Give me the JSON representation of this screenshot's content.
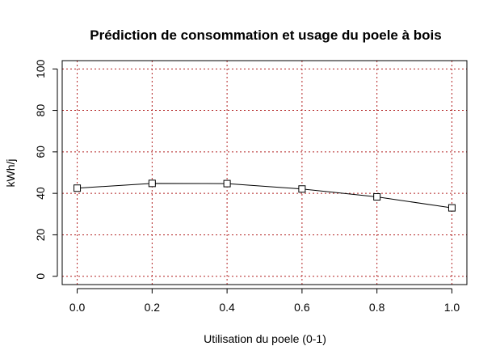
{
  "chart_data": {
    "type": "line",
    "title": "Prédiction de consommation et usage du poele à bois",
    "xlabel": "Utilisation du poele (0-1)",
    "ylabel": "kWh/j",
    "xlim": [
      -0.04,
      1.04
    ],
    "ylim": [
      -4,
      104
    ],
    "xticks": [
      0.0,
      0.2,
      0.4,
      0.6,
      0.8,
      1.0
    ],
    "xtick_labels": [
      "0.0",
      "0.2",
      "0.4",
      "0.6",
      "0.8",
      "1.0"
    ],
    "yticks": [
      0,
      20,
      40,
      60,
      80,
      100
    ],
    "ytick_labels": [
      "0",
      "20",
      "40",
      "60",
      "80",
      "100"
    ],
    "grid": true,
    "grid_color": "#b22222",
    "marker": "open-square",
    "series": [
      {
        "x": [
          0.0,
          0.2,
          0.4,
          0.6,
          0.8,
          1.0
        ],
        "y": [
          42.5,
          44.8,
          44.7,
          42.1,
          38.3,
          33.0
        ]
      }
    ]
  }
}
